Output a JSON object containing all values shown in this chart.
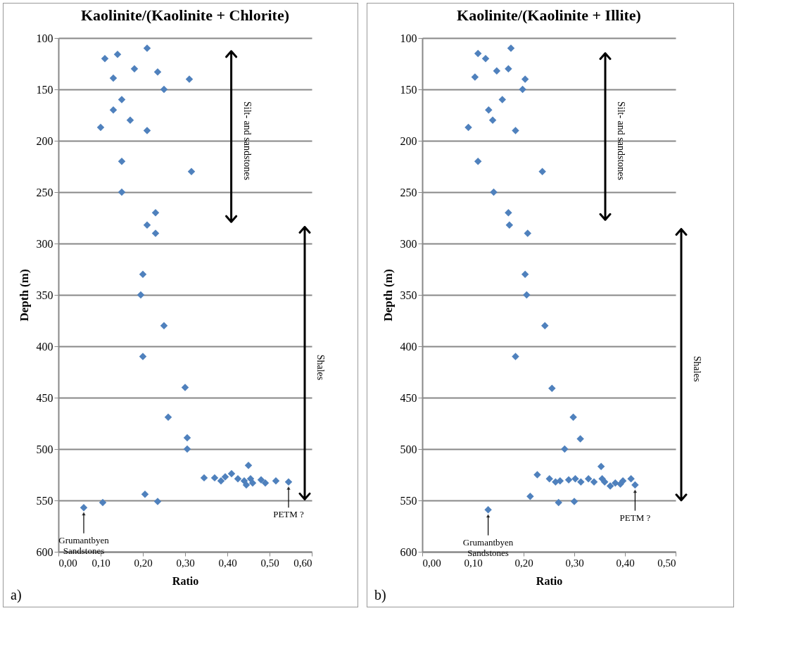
{
  "chart_data": [
    {
      "type": "scatter",
      "title": "Kaolinite/(Kaolinite + Chlorite)",
      "xlabel": "Ratio",
      "ylabel": "Depth (m)",
      "x": [
        0.21,
        0.14,
        0.11,
        0.18,
        0.235,
        0.13,
        0.31,
        0.25,
        0.15,
        0.13,
        0.17,
        0.1,
        0.21,
        0.15,
        0.315,
        0.15,
        0.23,
        0.21,
        0.23,
        0.2,
        0.195,
        0.25,
        0.2,
        0.3,
        0.26,
        0.305,
        0.305,
        0.345,
        0.37,
        0.385,
        0.395,
        0.41,
        0.45,
        0.425,
        0.44,
        0.445,
        0.455,
        0.46,
        0.48,
        0.49,
        0.515,
        0.545,
        0.205,
        0.235,
        0.105,
        0.06
      ],
      "values": [
        110,
        116,
        120,
        130,
        133,
        139,
        140,
        150,
        160,
        170,
        180,
        187,
        190,
        220,
        230,
        250,
        270,
        282,
        290,
        330,
        350,
        380,
        410,
        440,
        469,
        489,
        500,
        528,
        528,
        531,
        527,
        524,
        516,
        529,
        531,
        535,
        529,
        533,
        530,
        533,
        531,
        532,
        544,
        551,
        552,
        557
      ],
      "color": "#4f81bd",
      "marker": "diamond",
      "xlim": [
        0,
        0.6
      ],
      "xticks": [
        {
          "value": 0,
          "label": "0,00"
        },
        {
          "value": 0.1,
          "label": "0,10"
        },
        {
          "value": 0.2,
          "label": "0,20"
        },
        {
          "value": 0.3,
          "label": "0,30"
        },
        {
          "value": 0.4,
          "label": "0,40"
        },
        {
          "value": 0.5,
          "label": "0,50"
        },
        {
          "value": 0.6,
          "label": "0,60"
        }
      ],
      "ylim": [
        600,
        100
      ],
      "yticks": [
        100,
        150,
        200,
        250,
        300,
        350,
        400,
        450,
        500,
        550,
        600
      ],
      "grid": "y",
      "annotations": [
        "Silt- and sandstones",
        "Shales",
        {
          "text": "Grumantbyen Sandstones",
          "x": 0.06,
          "y": 557
        },
        {
          "text": "PETM ?",
          "x": 0.545,
          "y": 532
        },
        "a)"
      ]
    },
    {
      "type": "scatter",
      "title": "Kaolinite/(Kaolinite + Illite)",
      "xlabel": "Ratio",
      "ylabel": "Depth (m)",
      "x": [
        0.175,
        0.11,
        0.125,
        0.17,
        0.147,
        0.104,
        0.203,
        0.198,
        0.158,
        0.131,
        0.139,
        0.091,
        0.184,
        0.11,
        0.237,
        0.141,
        0.17,
        0.172,
        0.208,
        0.203,
        0.206,
        0.242,
        0.184,
        0.256,
        0.298,
        0.312,
        0.281,
        0.353,
        0.227,
        0.251,
        0.263,
        0.272,
        0.289,
        0.302,
        0.313,
        0.328,
        0.339,
        0.355,
        0.36,
        0.371,
        0.381,
        0.391,
        0.396,
        0.412,
        0.42,
        0.213,
        0.269,
        0.3,
        0.13
      ],
      "values": [
        110,
        115,
        120,
        130,
        132,
        138,
        140,
        150,
        160,
        170,
        180,
        187,
        190,
        220,
        230,
        250,
        270,
        282,
        290,
        330,
        350,
        380,
        410,
        441,
        469,
        490,
        500,
        517,
        525,
        529,
        532,
        531,
        530,
        529,
        532,
        529,
        532,
        529,
        532,
        536,
        533,
        534,
        531,
        529,
        535,
        546,
        552,
        551,
        559
      ],
      "color": "#4f81bd",
      "marker": "diamond",
      "xlim": [
        0,
        0.5
      ],
      "xticks": [
        {
          "value": 0,
          "label": "0,00"
        },
        {
          "value": 0.1,
          "label": "0,10"
        },
        {
          "value": 0.2,
          "label": "0,20"
        },
        {
          "value": 0.3,
          "label": "0,30"
        },
        {
          "value": 0.4,
          "label": "0,40"
        },
        {
          "value": 0.5,
          "label": "0,50"
        }
      ],
      "ylim": [
        600,
        100
      ],
      "yticks": [
        100,
        150,
        200,
        250,
        300,
        350,
        400,
        450,
        500,
        550,
        600
      ],
      "grid": "y",
      "annotations": [
        "Silt- and sandstones",
        "Shales",
        {
          "text": "Grumantbyen Sandstones",
          "x": 0.13,
          "y": 559
        },
        {
          "text": "PETM ?",
          "x": 0.42,
          "y": 535
        },
        "b)"
      ]
    }
  ]
}
